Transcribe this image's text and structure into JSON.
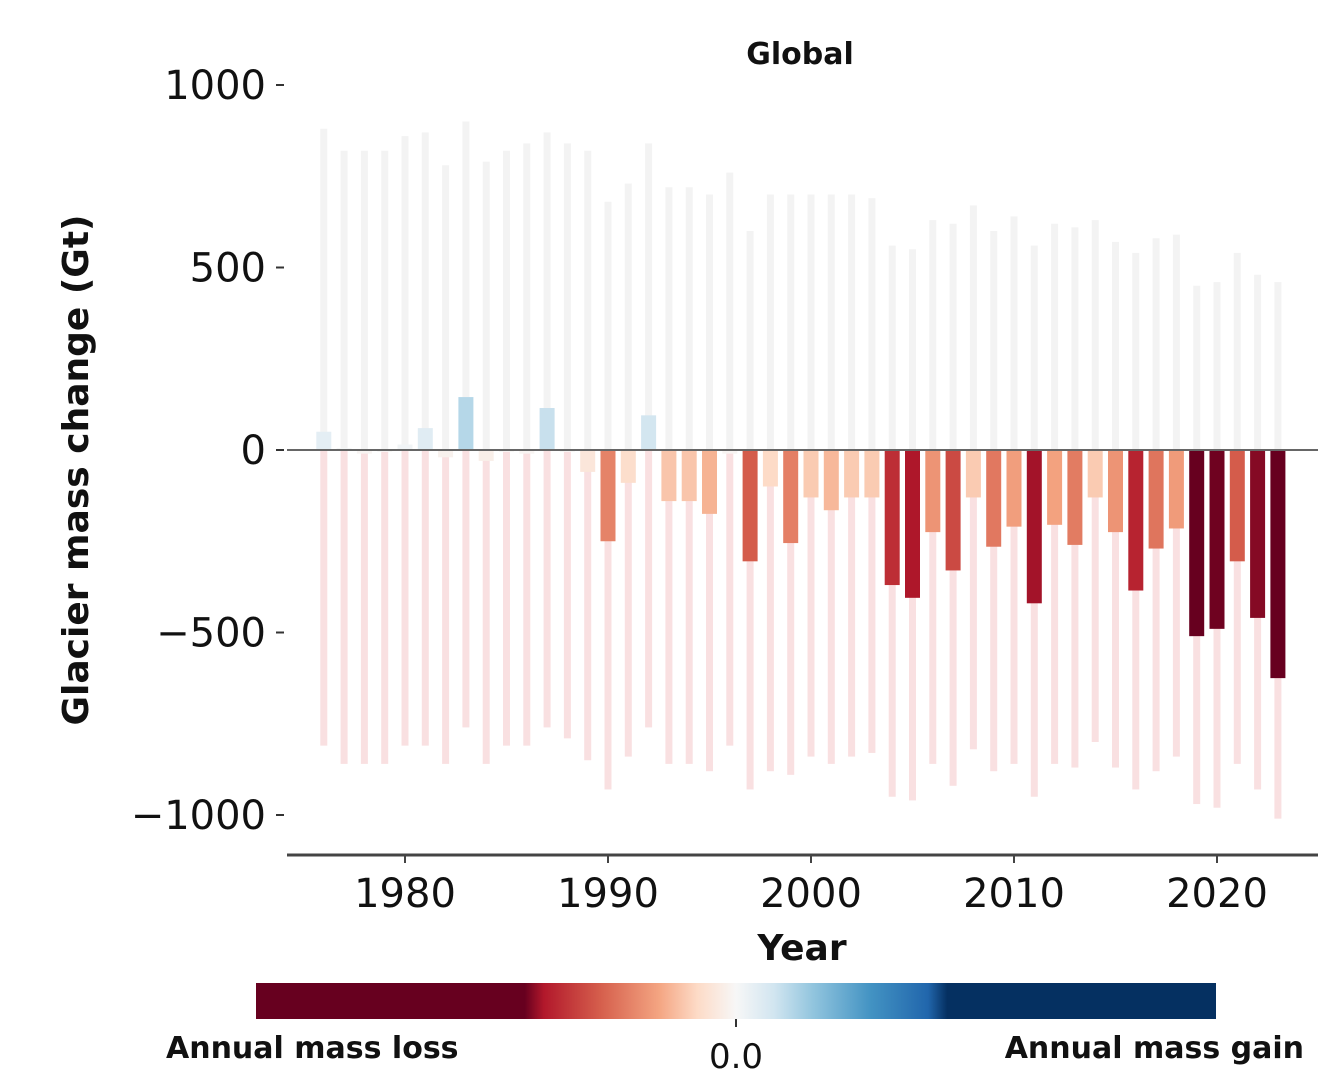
{
  "chart_data": {
    "type": "bar",
    "title": "Global",
    "xlabel": "Year",
    "ylabel": "Glacier mass change (Gt)",
    "xlim": [
      1974.5,
      2025.2
    ],
    "ylim": [
      -1100,
      1000
    ],
    "x_ticks": [
      1980,
      1990,
      2000,
      2010,
      2020
    ],
    "y_ticks": [
      1000,
      500,
      0,
      -500,
      -1000
    ],
    "y_tick_labels": [
      "1000",
      "500",
      "0",
      "−500",
      "−1000"
    ],
    "x_tick_labels": [
      "1980",
      "1990",
      "2000",
      "2010",
      "2020"
    ],
    "grid": false,
    "years": [
      1976,
      1977,
      1978,
      1979,
      1980,
      1981,
      1982,
      1983,
      1984,
      1985,
      1986,
      1987,
      1988,
      1989,
      1990,
      1991,
      1992,
      1993,
      1994,
      1995,
      1996,
      1997,
      1998,
      1999,
      2000,
      2001,
      2002,
      2003,
      2004,
      2005,
      2006,
      2007,
      2008,
      2009,
      2010,
      2011,
      2012,
      2013,
      2014,
      2015,
      2016,
      2017,
      2018,
      2019,
      2020,
      2021,
      2022,
      2023
    ],
    "values": [
      50,
      5,
      -10,
      -5,
      15,
      60,
      -20,
      145,
      -30,
      -5,
      -10,
      115,
      -5,
      -60,
      -250,
      -90,
      95,
      -140,
      -140,
      -175,
      -10,
      -305,
      -100,
      -255,
      -130,
      -165,
      -130,
      -130,
      -370,
      -405,
      -225,
      -330,
      -130,
      -265,
      -210,
      -420,
      -205,
      -260,
      -130,
      -225,
      -385,
      -270,
      -215,
      -510,
      -490,
      -305,
      -460,
      -625
    ],
    "background_range_top": [
      880,
      820,
      820,
      820,
      860,
      870,
      780,
      900,
      790,
      820,
      840,
      870,
      840,
      820,
      680,
      730,
      840,
      720,
      720,
      700,
      760,
      600,
      700,
      700,
      700,
      700,
      700,
      690,
      560,
      550,
      630,
      620,
      670,
      600,
      640,
      560,
      620,
      610,
      630,
      570,
      540,
      580,
      590,
      450,
      460,
      540,
      480,
      460
    ],
    "background_range_bottom": [
      -810,
      -860,
      -860,
      -860,
      -810,
      -810,
      -860,
      -760,
      -860,
      -810,
      -810,
      -760,
      -790,
      -850,
      -930,
      -840,
      -760,
      -860,
      -860,
      -880,
      -810,
      -930,
      -880,
      -890,
      -840,
      -860,
      -840,
      -830,
      -950,
      -960,
      -860,
      -920,
      -820,
      -880,
      -860,
      -950,
      -860,
      -870,
      -800,
      -870,
      -930,
      -880,
      -840,
      -970,
      -980,
      -860,
      -930,
      -1010
    ],
    "colorbar": {
      "left_label": "Annual mass loss",
      "center_label": "0.0",
      "right_label": "Annual mass gain",
      "colors": [
        "#67001f",
        "#b2182b",
        "#d6604d",
        "#f4a582",
        "#fddbc7",
        "#f7f7f7",
        "#d1e5f0",
        "#92c5de",
        "#4393c3",
        "#2166ac",
        "#053061"
      ]
    }
  }
}
